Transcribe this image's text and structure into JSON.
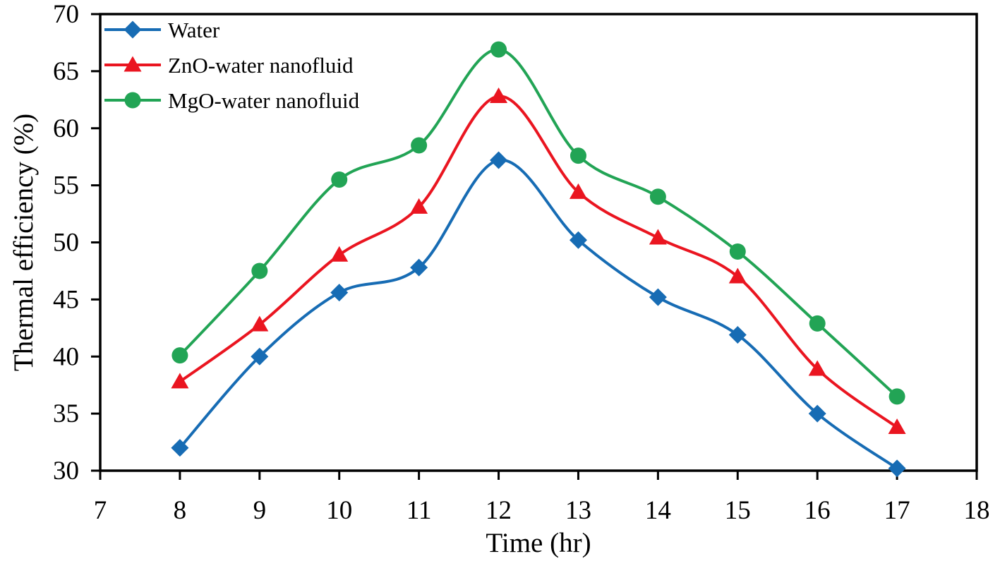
{
  "chart_data": {
    "type": "line",
    "title": "",
    "xlabel": "Time (hr)",
    "ylabel": "Thermal efficiency (%)",
    "x": [
      8,
      9,
      10,
      11,
      12,
      13,
      14,
      15,
      16,
      17
    ],
    "xlim": [
      7,
      18
    ],
    "ylim": [
      30,
      70
    ],
    "x_ticks": [
      7,
      8,
      9,
      10,
      11,
      12,
      13,
      14,
      15,
      16,
      17,
      18
    ],
    "y_ticks": [
      30,
      35,
      40,
      45,
      50,
      55,
      60,
      65,
      70
    ],
    "grid": false,
    "line_style": "smooth",
    "legend_position": "top-left-inside",
    "frame_color": "#000000",
    "background": "#ffffff",
    "series": [
      {
        "name": "Water",
        "color": "#176CB4",
        "marker": "diamond",
        "values": [
          32.0,
          40.0,
          45.6,
          47.8,
          57.2,
          50.2,
          45.2,
          41.9,
          35.0,
          30.2
        ]
      },
      {
        "name": "ZnO-water nanofluid",
        "color": "#EA1520",
        "marker": "triangle",
        "values": [
          37.8,
          42.8,
          48.9,
          53.1,
          62.8,
          54.4,
          50.4,
          47.0,
          38.9,
          33.8
        ]
      },
      {
        "name": "MgO-water nanofluid",
        "color": "#22A455",
        "marker": "circle",
        "values": [
          40.1,
          47.5,
          55.5,
          58.5,
          66.9,
          57.6,
          54.0,
          49.2,
          42.9,
          36.5
        ]
      }
    ]
  }
}
